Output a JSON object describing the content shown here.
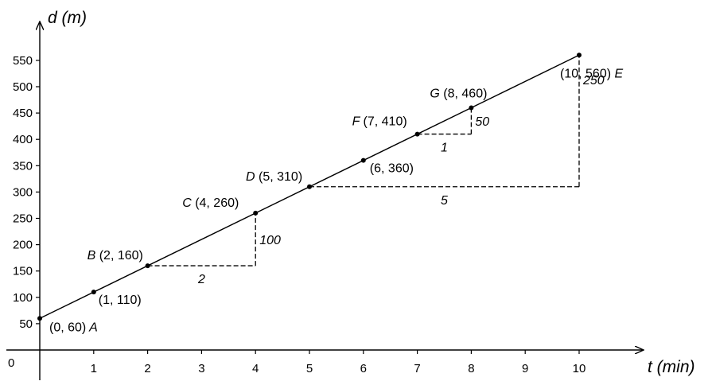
{
  "chart_data": {
    "type": "line",
    "xlabel": "t (min)",
    "ylabel": "d (m)",
    "origin_label": "0",
    "xlim": [
      0,
      10
    ],
    "ylim": [
      0,
      550
    ],
    "x_ticks": [
      1,
      2,
      3,
      4,
      5,
      6,
      7,
      8,
      9,
      10
    ],
    "y_ticks": [
      50,
      100,
      150,
      200,
      250,
      300,
      350,
      400,
      450,
      500,
      550
    ],
    "grid": false,
    "series": [
      {
        "x": [
          0,
          10
        ],
        "y": [
          60,
          560
        ]
      }
    ],
    "points": [
      {
        "letter": "A",
        "coords": "(0, 60)",
        "x": 0,
        "y": 60
      },
      {
        "letter": "",
        "coords": "(1, 110)",
        "x": 1,
        "y": 110
      },
      {
        "letter": "B",
        "coords": "(2, 160)",
        "x": 2,
        "y": 160
      },
      {
        "letter": "C",
        "coords": "(4, 260)",
        "x": 4,
        "y": 260
      },
      {
        "letter": "D",
        "coords": "(5, 310)",
        "x": 5,
        "y": 310
      },
      {
        "letter": "",
        "coords": "(6, 360)",
        "x": 6,
        "y": 360
      },
      {
        "letter": "F",
        "coords": "(7, 410)",
        "x": 7,
        "y": 410
      },
      {
        "letter": "G",
        "coords": "(8, 460)",
        "x": 8,
        "y": 460
      },
      {
        "letter": "E",
        "coords": "(10, 560)",
        "x": 10,
        "y": 560
      }
    ],
    "slope_triangles": [
      {
        "from": [
          2,
          160
        ],
        "to": [
          4,
          260
        ],
        "run_label": "2",
        "rise_label": "100"
      },
      {
        "from": [
          7,
          410
        ],
        "to": [
          8,
          460
        ],
        "run_label": "1",
        "rise_label": "50"
      },
      {
        "from": [
          5,
          310
        ],
        "to": [
          10,
          560
        ],
        "run_label": "5",
        "rise_label": "250"
      }
    ]
  }
}
